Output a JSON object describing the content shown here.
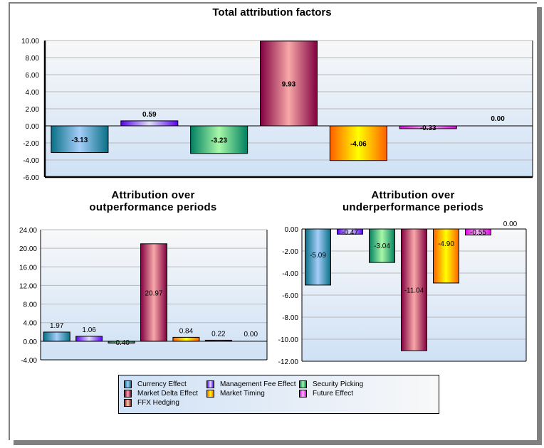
{
  "colors": {
    "Currency Effect": [
      "#087087",
      "#a5cdf8"
    ],
    "Management Fee Effect": [
      "#5a00f0",
      "#e0e0f8"
    ],
    "Security Picking": [
      "#008060",
      "#a8f8a8"
    ],
    "Market Delta Effect": [
      "#800040",
      "#f8a8a8"
    ],
    "Market Timing": [
      "#ff6000",
      "#ffff00"
    ],
    "Future Effect": [
      "#e000e0",
      "#f8c0f8"
    ],
    "FFX Hedging": [
      "#902010",
      "#f8c8b8"
    ]
  },
  "legend": {
    "items": [
      "Currency Effect",
      "Management Fee Effect",
      "Security Picking",
      "Market Delta Effect",
      "Market Timing",
      "Future Effect",
      "FFX Hedging"
    ]
  },
  "chart_data": [
    {
      "type": "bar",
      "title": "Total attribution factors",
      "categories": [
        "Currency Effect",
        "Management Fee Effect",
        "Security Picking",
        "Market Delta Effect",
        "Market Timing",
        "Future Effect",
        "FFX Hedging"
      ],
      "values": [
        -3.13,
        0.59,
        -3.23,
        9.93,
        -4.06,
        -0.33,
        0.0
      ],
      "data_labels": [
        "-3.13",
        "0.59",
        "-3.23",
        "9.93",
        "-4.06",
        "-0.33",
        "0.00"
      ],
      "ylim": [
        -6,
        10
      ],
      "yticks": [
        "10.00",
        "8.00",
        "6.00",
        "4.00",
        "2.00",
        "0.00",
        "-2.00",
        "-4.00",
        "-6.00"
      ],
      "ytick_values": [
        10,
        8,
        6,
        4,
        2,
        0,
        -2,
        -4,
        -6
      ],
      "xlabel": "",
      "ylabel": "",
      "grid": true,
      "legend": "bottom"
    },
    {
      "type": "bar",
      "title": "Attribution over\noutperformance periods",
      "categories": [
        "Currency Effect",
        "Management Fee Effect",
        "Security Picking",
        "Market Delta Effect",
        "Market Timing",
        "Future Effect",
        "FFX Hedging"
      ],
      "values": [
        1.97,
        1.06,
        -0.4,
        20.97,
        0.84,
        0.22,
        0.0
      ],
      "data_labels": [
        "1.97",
        "1.06",
        "-0.40",
        "20.97",
        "0.84",
        "0.22",
        "0.00"
      ],
      "ylim": [
        -4,
        24
      ],
      "yticks": [
        "24.00",
        "20.00",
        "16.00",
        "12.00",
        "8.00",
        "4.00",
        "0.00",
        "-4.00"
      ],
      "ytick_values": [
        24,
        20,
        16,
        12,
        8,
        4,
        0,
        -4
      ],
      "xlabel": "",
      "ylabel": "",
      "grid": true,
      "legend": "bottom"
    },
    {
      "type": "bar",
      "title": "Attribution over\nunderperformance periods",
      "categories": [
        "Currency Effect",
        "Management Fee Effect",
        "Security Picking",
        "Market Delta Effect",
        "Market Timing",
        "Future Effect",
        "FFX Hedging"
      ],
      "values": [
        -5.09,
        -0.47,
        -3.04,
        -11.04,
        -4.9,
        -0.55,
        0.0
      ],
      "data_labels": [
        "-5.09",
        "-0.47",
        "-3.04",
        "-11.04",
        "-4.90",
        "-0.55",
        "0.00"
      ],
      "ylim": [
        -12,
        0
      ],
      "yticks": [
        "0.00",
        "-2.00",
        "-4.00",
        "-6.00",
        "-8.00",
        "-10.00",
        "-12.00"
      ],
      "ytick_values": [
        0,
        -2,
        -4,
        -6,
        -8,
        -10,
        -12
      ],
      "xlabel": "",
      "ylabel": "",
      "grid": true,
      "legend": "bottom"
    }
  ]
}
